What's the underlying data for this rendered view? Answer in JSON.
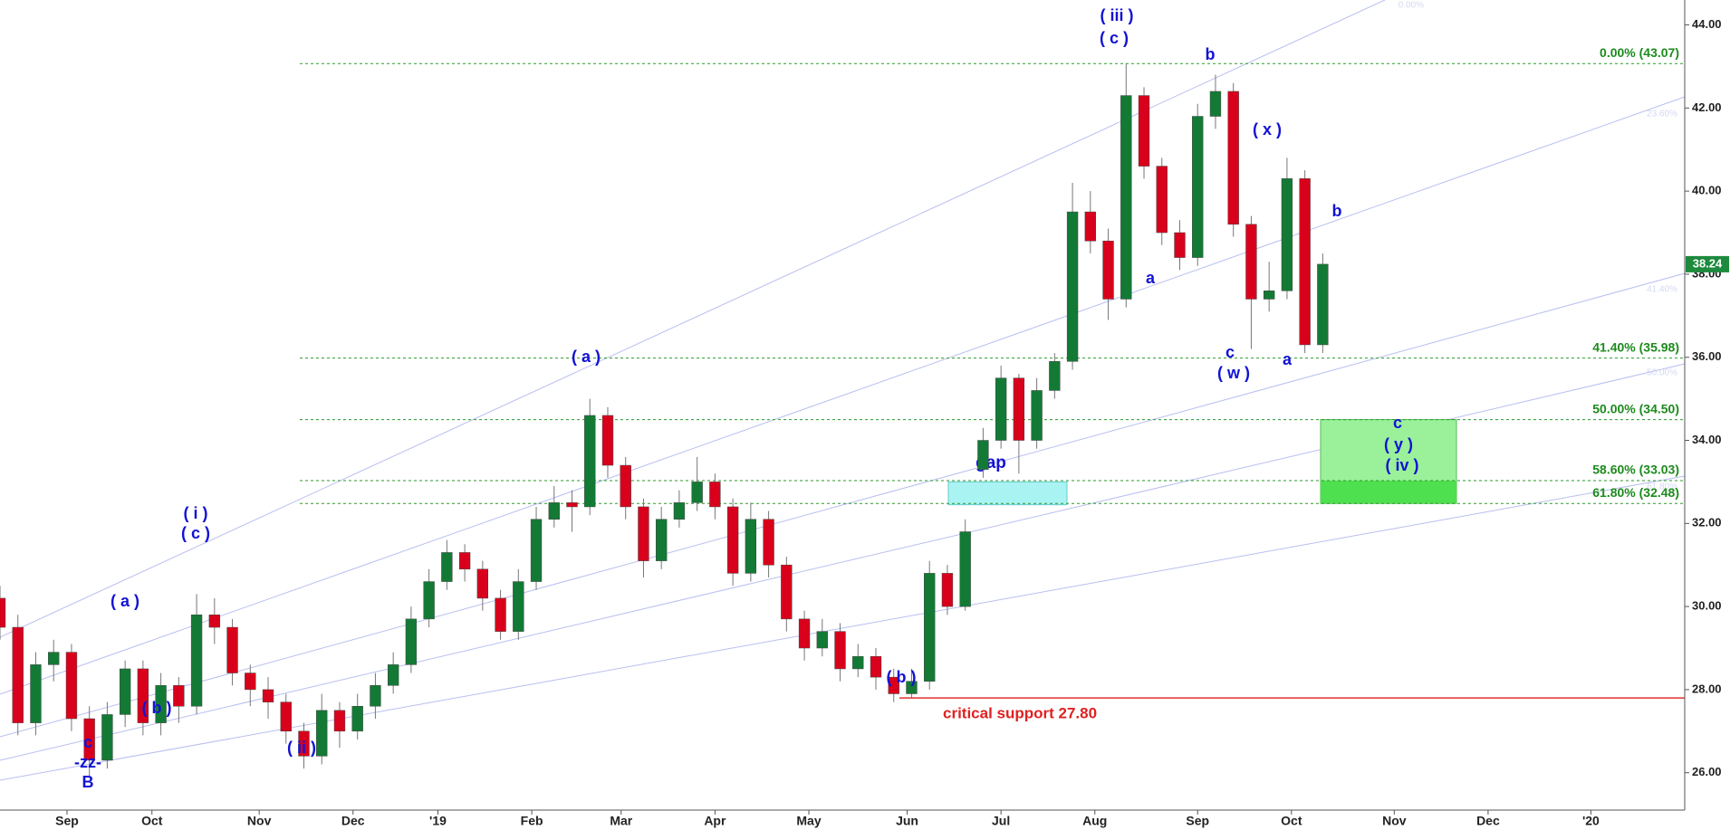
{
  "chart_data": {
    "type": "candlestick",
    "x": [
      0,
      4,
      8,
      12,
      16,
      20,
      24,
      28,
      32,
      36,
      40,
      44,
      48,
      52,
      56,
      60,
      64,
      68,
      72,
      76,
      80,
      84,
      88,
      92,
      96,
      100,
      104,
      108,
      112,
      116,
      120,
      124,
      128,
      132,
      136,
      140,
      144,
      148,
      152,
      156,
      160,
      164,
      168,
      172,
      176,
      180,
      184,
      188,
      192,
      196,
      200,
      204,
      208,
      212,
      216,
      220,
      224,
      228,
      232,
      236,
      240,
      244,
      248,
      252,
      256,
      260,
      264,
      268,
      272,
      276,
      280,
      284,
      288,
      292,
      296
    ],
    "candles": [
      [
        30.2,
        30.5,
        29.2,
        29.5
      ],
      [
        29.5,
        29.8,
        26.9,
        27.2
      ],
      [
        27.2,
        28.9,
        26.9,
        28.6
      ],
      [
        28.6,
        29.2,
        28.2,
        28.9
      ],
      [
        28.9,
        29.1,
        27.0,
        27.3
      ],
      [
        27.3,
        27.6,
        25.9,
        26.3
      ],
      [
        26.3,
        27.7,
        26.1,
        27.4
      ],
      [
        27.4,
        28.7,
        27.1,
        28.5
      ],
      [
        28.5,
        28.7,
        26.9,
        27.2
      ],
      [
        27.2,
        28.4,
        26.9,
        28.1
      ],
      [
        28.1,
        28.3,
        27.2,
        27.6
      ],
      [
        27.6,
        30.3,
        27.4,
        29.8
      ],
      [
        29.8,
        30.2,
        29.1,
        29.5
      ],
      [
        29.5,
        29.7,
        28.1,
        28.4
      ],
      [
        28.4,
        28.6,
        27.6,
        28.0
      ],
      [
        28.0,
        28.3,
        27.3,
        27.7
      ],
      [
        27.7,
        27.9,
        26.7,
        27.0
      ],
      [
        27.0,
        27.2,
        26.1,
        26.4
      ],
      [
        26.4,
        27.9,
        26.2,
        27.5
      ],
      [
        27.5,
        27.7,
        26.6,
        27.0
      ],
      [
        27.0,
        27.9,
        26.8,
        27.6
      ],
      [
        27.6,
        28.4,
        27.3,
        28.1
      ],
      [
        28.1,
        28.9,
        27.9,
        28.6
      ],
      [
        28.6,
        30.0,
        28.4,
        29.7
      ],
      [
        29.7,
        30.9,
        29.5,
        30.6
      ],
      [
        30.6,
        31.6,
        30.4,
        31.3
      ],
      [
        31.3,
        31.5,
        30.6,
        30.9
      ],
      [
        30.9,
        31.1,
        29.9,
        30.2
      ],
      [
        30.2,
        30.4,
        29.2,
        29.4
      ],
      [
        29.4,
        30.9,
        29.2,
        30.6
      ],
      [
        30.6,
        32.4,
        30.4,
        32.1
      ],
      [
        32.1,
        32.9,
        31.9,
        32.5
      ],
      [
        32.5,
        32.8,
        31.8,
        32.4
      ],
      [
        32.4,
        35.0,
        32.2,
        34.6
      ],
      [
        34.6,
        34.8,
        33.1,
        33.4
      ],
      [
        33.4,
        33.6,
        32.1,
        32.4
      ],
      [
        32.4,
        32.6,
        30.7,
        31.1
      ],
      [
        31.1,
        32.4,
        30.9,
        32.1
      ],
      [
        32.1,
        32.8,
        31.9,
        32.5
      ],
      [
        32.5,
        33.6,
        32.3,
        33.0
      ],
      [
        33.0,
        33.2,
        32.1,
        32.4
      ],
      [
        32.4,
        32.6,
        30.5,
        30.8
      ],
      [
        30.8,
        32.5,
        30.6,
        32.1
      ],
      [
        32.1,
        32.3,
        30.7,
        31.0
      ],
      [
        31.0,
        31.2,
        29.4,
        29.7
      ],
      [
        29.7,
        29.9,
        28.7,
        29.0
      ],
      [
        29.0,
        29.7,
        28.8,
        29.4
      ],
      [
        29.4,
        29.6,
        28.2,
        28.5
      ],
      [
        28.5,
        29.1,
        28.3,
        28.8
      ],
      [
        28.8,
        29.0,
        28.0,
        28.3
      ],
      [
        28.3,
        28.5,
        27.7,
        27.9
      ],
      [
        27.9,
        28.5,
        27.8,
        28.2
      ],
      [
        28.2,
        31.1,
        28.0,
        30.8
      ],
      [
        30.8,
        31.0,
        29.8,
        30.0
      ],
      [
        30.0,
        32.1,
        29.9,
        31.8
      ],
      [
        33.3,
        34.3,
        33.1,
        34.0
      ],
      [
        34.0,
        35.8,
        33.8,
        35.5
      ],
      [
        35.5,
        35.6,
        33.2,
        34.0
      ],
      [
        34.0,
        35.5,
        33.8,
        35.2
      ],
      [
        35.2,
        36.1,
        35.0,
        35.9
      ],
      [
        35.9,
        40.2,
        35.7,
        39.5
      ],
      [
        39.5,
        40.0,
        38.5,
        38.8
      ],
      [
        38.8,
        39.1,
        36.9,
        37.4
      ],
      [
        37.4,
        43.07,
        37.2,
        42.3
      ],
      [
        42.3,
        42.5,
        40.3,
        40.6
      ],
      [
        40.6,
        40.8,
        38.7,
        39.0
      ],
      [
        39.0,
        39.3,
        38.1,
        38.4
      ],
      [
        38.4,
        42.1,
        38.2,
        41.8
      ],
      [
        41.8,
        42.8,
        41.5,
        42.4
      ],
      [
        42.4,
        42.6,
        38.9,
        39.2
      ],
      [
        39.2,
        39.4,
        36.2,
        37.4
      ],
      [
        37.4,
        38.3,
        37.1,
        37.6
      ],
      [
        37.6,
        40.8,
        37.4,
        40.3
      ],
      [
        40.3,
        40.5,
        36.1,
        36.3
      ],
      [
        36.3,
        38.5,
        36.1,
        38.24
      ]
    ],
    "up_color": "#137a35",
    "down_color": "#d9001b",
    "xlim": [
      0,
      377
    ],
    "xticks": [
      {
        "value": 15,
        "label": "Sep"
      },
      {
        "value": 34,
        "label": "Oct"
      },
      {
        "value": 58,
        "label": "Nov"
      },
      {
        "value": 79,
        "label": "Dec"
      },
      {
        "value": 98,
        "label": "'19"
      },
      {
        "value": 119,
        "label": "Feb"
      },
      {
        "value": 139,
        "label": "Mar"
      },
      {
        "value": 160,
        "label": "Apr"
      },
      {
        "value": 181,
        "label": "May"
      },
      {
        "value": 203,
        "label": "Jun"
      },
      {
        "value": 224,
        "label": "Jul"
      },
      {
        "value": 245,
        "label": "Aug"
      },
      {
        "value": 268,
        "label": "Sep"
      },
      {
        "value": 289,
        "label": "Oct"
      },
      {
        "value": 312,
        "label": "Nov"
      },
      {
        "value": 333,
        "label": "Dec"
      },
      {
        "value": 356,
        "label": "'20"
      }
    ],
    "ylim": [
      25.1,
      44.6
    ],
    "yticks": [
      {
        "value": 26,
        "label": "26.00"
      },
      {
        "value": 28,
        "label": "28.00"
      },
      {
        "value": 30,
        "label": "30.00"
      },
      {
        "value": 32,
        "label": "32.00"
      },
      {
        "value": 34,
        "label": "34.00"
      },
      {
        "value": 36,
        "label": "36.00"
      },
      {
        "value": 38,
        "label": "38.00"
      },
      {
        "value": 40,
        "label": "40.00"
      },
      {
        "value": 42,
        "label": "42.00"
      },
      {
        "value": 44,
        "label": "44.00"
      }
    ],
    "fib_levels": [
      {
        "label": "0.00% (43.07)",
        "value": 43.07
      },
      {
        "label": "41.40% (35.98)",
        "value": 35.98
      },
      {
        "label": "50.00% (34.50)",
        "value": 34.5
      },
      {
        "label": "58.60% (33.03)",
        "value": 33.03
      },
      {
        "label": "61.80% (32.48)",
        "value": 32.48
      }
    ],
    "support": {
      "label": "critical support 27.80",
      "value": 27.8
    },
    "gap_zone": {
      "label": "gap",
      "low": 32.45,
      "high": 33.0
    },
    "channel_labels": [
      "0.00%",
      "23.60%",
      "41.40%",
      "50.00%",
      "61.80%"
    ],
    "annotations": [
      "( iii )",
      "( c )",
      "b",
      "( x )",
      "b",
      "a",
      "c",
      "( w )",
      "a",
      "( a )",
      "c",
      "( y )",
      "( iv )",
      "( i )",
      "( c )",
      "( a )",
      "( b )",
      "( ii )",
      "c",
      "-zz-",
      "B",
      "( b )"
    ]
  }
}
